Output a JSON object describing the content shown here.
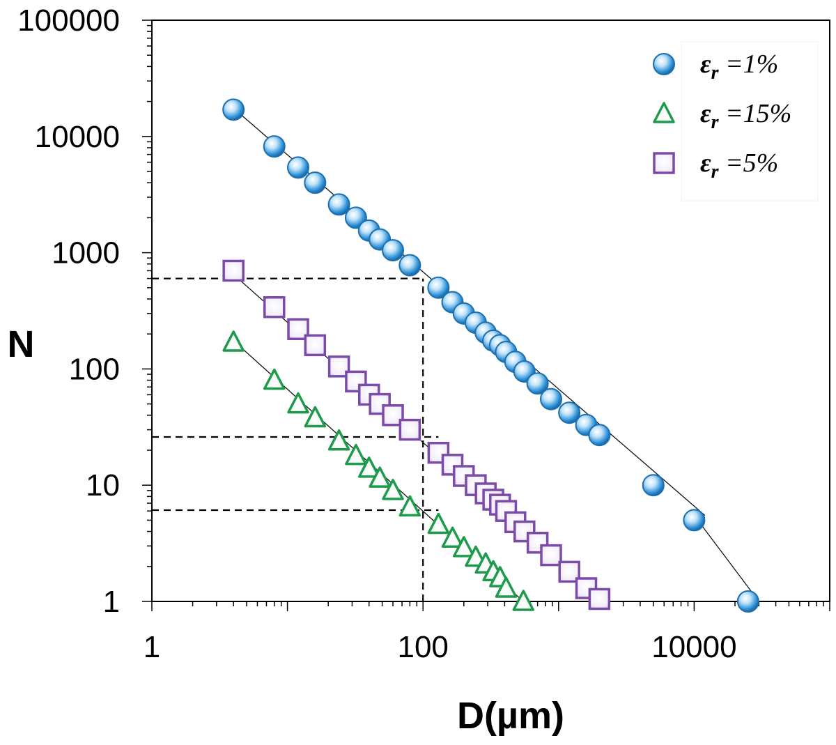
{
  "chart_data": {
    "type": "scatter",
    "xscale": "log",
    "yscale": "log",
    "xlim": [
      1,
      100000
    ],
    "ylim": [
      1,
      100000
    ],
    "xlabel": "D(µm)",
    "ylabel": "N",
    "x_ticks": [
      1,
      100,
      10000
    ],
    "x_tick_labels": [
      "1",
      "100",
      "10000"
    ],
    "y_ticks": [
      1,
      10,
      100,
      1000,
      10000,
      100000
    ],
    "y_tick_labels": [
      "1",
      "10",
      "100",
      "1000",
      "10000",
      "100000"
    ],
    "grid": false,
    "legend_position": "top-right",
    "series": [
      {
        "name": "εr =1%",
        "legend_symbol": "ε",
        "legend_subscript": "r",
        "legend_value": " =1%",
        "marker": "circle",
        "color": "#2b8fd6",
        "x": [
          4.0,
          8.0,
          12.0,
          16.0,
          24.0,
          32.0,
          40.0,
          48.0,
          60.0,
          80.0,
          130.0,
          165.0,
          200.0,
          245.0,
          290.0,
          330.0,
          370.0,
          410.0,
          480.0,
          560.0,
          700.0,
          880.0,
          1200.0,
          1600.0,
          2000.0,
          5000.0,
          10000.0,
          25000.0
        ],
        "y": [
          17000,
          8200,
          5400,
          4000,
          2600,
          2000,
          1550,
          1300,
          1050,
          780,
          500,
          375,
          300,
          250,
          205,
          175,
          160,
          140,
          115,
          95,
          75,
          55,
          42,
          33,
          27,
          10,
          5,
          1
        ]
      },
      {
        "name": "εr =15%",
        "legend_symbol": "ε",
        "legend_subscript": "r",
        "legend_value": " =15%",
        "marker": "triangle",
        "color": "#1f9a4c",
        "x": [
          4.0,
          8.0,
          12.0,
          16.0,
          24.0,
          32.0,
          40.0,
          48.0,
          60.0,
          80.0,
          130.0,
          165.0,
          200.0,
          245.0,
          290.0,
          330.0,
          370.0,
          410.0,
          550.0
        ],
        "y": [
          170,
          80,
          50,
          38,
          24,
          18,
          14,
          11.5,
          9,
          6.5,
          4.6,
          3.5,
          2.9,
          2.4,
          2.1,
          1.8,
          1.6,
          1.3,
          1
        ]
      },
      {
        "name": "εr =5%",
        "legend_symbol": "ε",
        "legend_subscript": "r",
        "legend_value": " =5%",
        "marker": "square",
        "color": "#7b4ba8",
        "x": [
          4.0,
          8.0,
          12.0,
          16.0,
          24.0,
          32.0,
          40.0,
          48.0,
          60.0,
          80.0,
          130.0,
          165.0,
          200.0,
          245.0,
          290.0,
          330.0,
          370.0,
          410.0,
          480.0,
          560.0,
          700.0,
          880.0,
          1200.0,
          1600.0,
          2000.0
        ],
        "y": [
          700,
          340,
          220,
          160,
          105,
          78,
          60,
          50,
          40,
          30,
          19,
          15,
          12,
          10,
          8.5,
          7.5,
          6.8,
          6.0,
          4.8,
          4.0,
          3.2,
          2.5,
          1.8,
          1.3,
          1.05
        ]
      }
    ],
    "fit_lines": [
      {
        "x": [
          4,
          12000
        ],
        "y": [
          17500,
          5.5
        ]
      },
      {
        "x": [
          10000,
          30000
        ],
        "y": [
          5.5,
          1.0
        ]
      },
      {
        "x": [
          4,
          2000
        ],
        "y": [
          650,
          1.05
        ]
      },
      {
        "x": [
          4,
          550
        ],
        "y": [
          175,
          1.0
        ]
      }
    ],
    "reference_lines": [
      {
        "x": [
          1,
          100
        ],
        "y": [
          600,
          600
        ]
      },
      {
        "x": [
          1,
          130
        ],
        "y": [
          26,
          26
        ]
      },
      {
        "x": [
          1,
          130
        ],
        "y": [
          6.1,
          6.1
        ]
      },
      {
        "x": [
          100,
          100
        ],
        "y": [
          1,
          600
        ]
      }
    ]
  }
}
